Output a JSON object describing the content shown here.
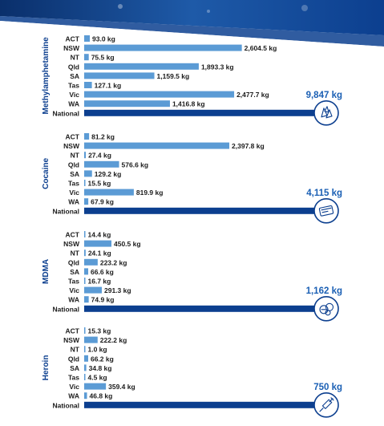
{
  "chart_data": {
    "type": "bar",
    "orientation": "horizontal",
    "unit": "kg",
    "colors": {
      "state_bar": "#5b9bd5",
      "national_bar": "#0c3f8f",
      "label": "#0c3f8f",
      "total": "#1a5fb4"
    },
    "panels": [
      {
        "drug": "Methylamphetamine",
        "icon": "crystals-icon",
        "total_label": "9,847 kg",
        "total": 9847,
        "rows": [
          {
            "state": "ACT",
            "value": 93.0,
            "label": "93.0 kg"
          },
          {
            "state": "NSW",
            "value": 2604.5,
            "label": "2,604.5 kg"
          },
          {
            "state": "NT",
            "value": 75.5,
            "label": "75.5 kg"
          },
          {
            "state": "Qld",
            "value": 1893.3,
            "label": "1,893.3 kg"
          },
          {
            "state": "SA",
            "value": 1159.5,
            "label": "1,159.5 kg"
          },
          {
            "state": "Tas",
            "value": 127.1,
            "label": "127.1 kg"
          },
          {
            "state": "Vic",
            "value": 2477.7,
            "label": "2,477.7 kg"
          },
          {
            "state": "WA",
            "value": 1416.8,
            "label": "1,416.8 kg"
          }
        ],
        "national_label": "National"
      },
      {
        "drug": "Cocaine",
        "icon": "card-powder-icon",
        "total_label": "4,115 kg",
        "total": 4115,
        "rows": [
          {
            "state": "ACT",
            "value": 81.2,
            "label": "81.2 kg"
          },
          {
            "state": "NSW",
            "value": 2397.8,
            "label": "2,397.8 kg"
          },
          {
            "state": "NT",
            "value": 27.4,
            "label": "27.4 kg"
          },
          {
            "state": "Qld",
            "value": 576.6,
            "label": "576.6 kg"
          },
          {
            "state": "SA",
            "value": 129.2,
            "label": "129.2 kg"
          },
          {
            "state": "Tas",
            "value": 15.5,
            "label": "15.5 kg"
          },
          {
            "state": "Vic",
            "value": 819.9,
            "label": "819.9 kg"
          },
          {
            "state": "WA",
            "value": 67.9,
            "label": "67.9 kg"
          }
        ],
        "national_label": "National"
      },
      {
        "drug": "MDMA",
        "icon": "pills-icon",
        "total_label": "1,162 kg",
        "total": 1162,
        "rows": [
          {
            "state": "ACT",
            "value": 14.4,
            "label": "14.4 kg"
          },
          {
            "state": "NSW",
            "value": 450.5,
            "label": "450.5 kg"
          },
          {
            "state": "NT",
            "value": 24.1,
            "label": "24.1 kg"
          },
          {
            "state": "Qld",
            "value": 223.2,
            "label": "223.2 kg"
          },
          {
            "state": "SA",
            "value": 66.6,
            "label": "66.6 kg"
          },
          {
            "state": "Tas",
            "value": 16.7,
            "label": "16.7 kg"
          },
          {
            "state": "Vic",
            "value": 291.3,
            "label": "291.3 kg"
          },
          {
            "state": "WA",
            "value": 74.9,
            "label": "74.9 kg"
          }
        ],
        "national_label": "National"
      },
      {
        "drug": "Heroin",
        "icon": "syringe-icon",
        "total_label": "750 kg",
        "total": 750,
        "rows": [
          {
            "state": "ACT",
            "value": 15.3,
            "label": "15.3 kg"
          },
          {
            "state": "NSW",
            "value": 222.2,
            "label": "222.2 kg"
          },
          {
            "state": "NT",
            "value": 1.0,
            "label": "1.0 kg"
          },
          {
            "state": "Qld",
            "value": 66.2,
            "label": "66.2 kg"
          },
          {
            "state": "SA",
            "value": 34.8,
            "label": "34.8 kg"
          },
          {
            "state": "Tas",
            "value": 4.5,
            "label": "4.5 kg"
          },
          {
            "state": "Vic",
            "value": 359.4,
            "label": "359.4 kg"
          },
          {
            "state": "WA",
            "value": 46.8,
            "label": "46.8 kg"
          }
        ],
        "national_label": "National"
      }
    ]
  }
}
